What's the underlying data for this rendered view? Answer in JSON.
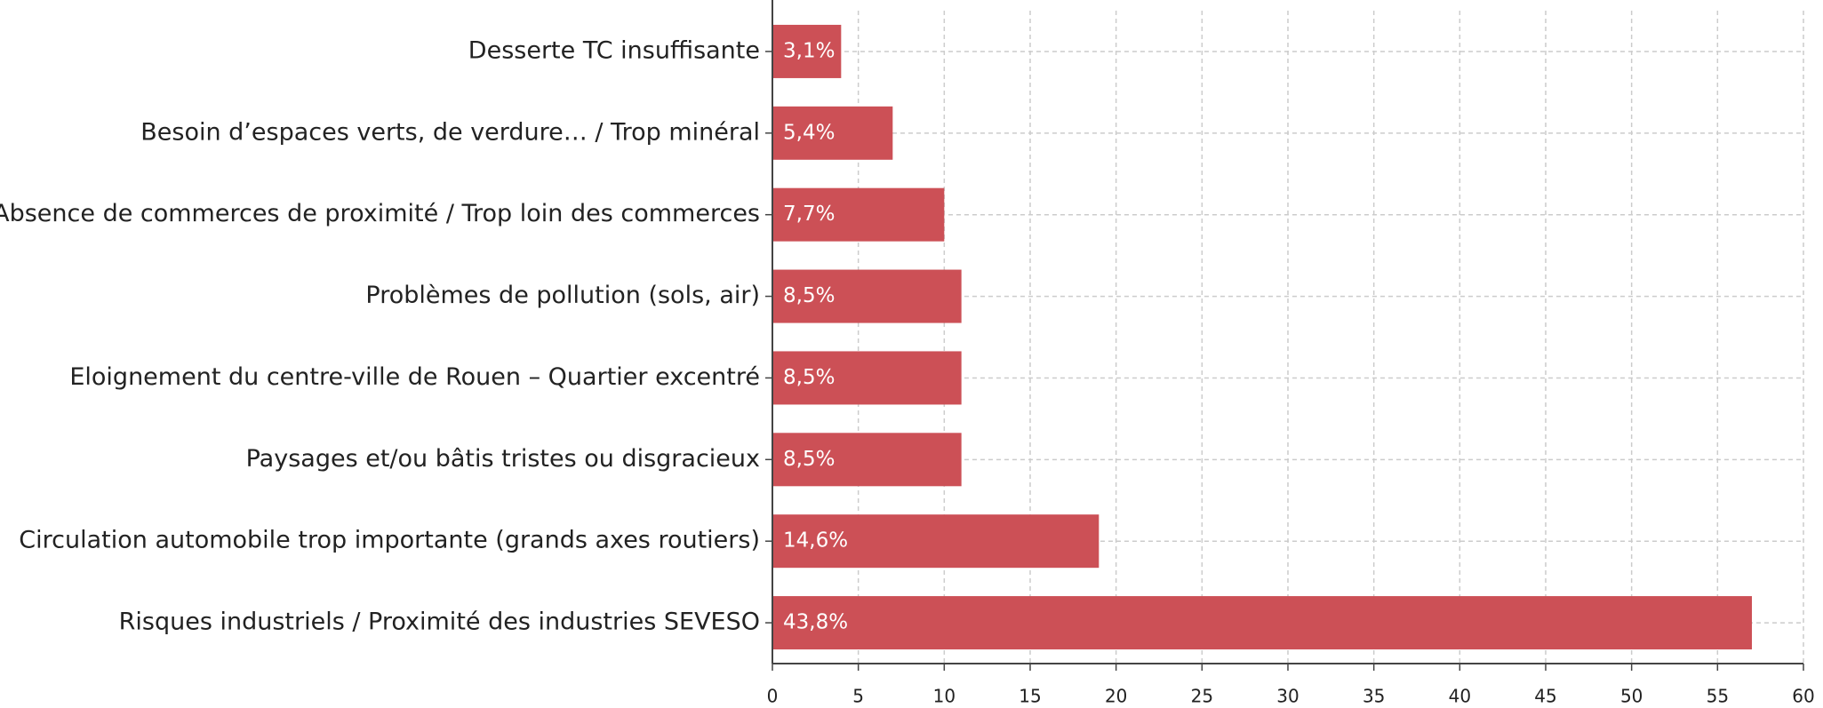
{
  "chart_data": {
    "type": "hbar",
    "categories": [
      "Desserte TC insuffisante",
      "Besoin d’espaces verts, de verdure… / Trop minéral",
      "Absence de commerces de proximité / Trop loin des commerces",
      "Problèmes de pollution (sols, air)",
      "Eloignement du centre-ville de Rouen – Quartier excentré",
      "Paysages et/ou bâtis tristes ou disgracieux",
      "Circulation automobile trop importante (grands axes routiers)",
      "Risques industriels / Proximité des industries SEVESO"
    ],
    "values": [
      4,
      7,
      10,
      11,
      11,
      11,
      19,
      57
    ],
    "value_labels": [
      "3,1%",
      "5,4%",
      "7,7%",
      "8,5%",
      "8,5%",
      "8,5%",
      "14,6%",
      "43,8%"
    ],
    "color": "#cc5056",
    "xlim": [
      0,
      60
    ],
    "xticks": [
      0,
      5,
      10,
      15,
      20,
      25,
      30,
      35,
      40,
      45,
      50,
      55,
      60
    ],
    "grid": true
  }
}
